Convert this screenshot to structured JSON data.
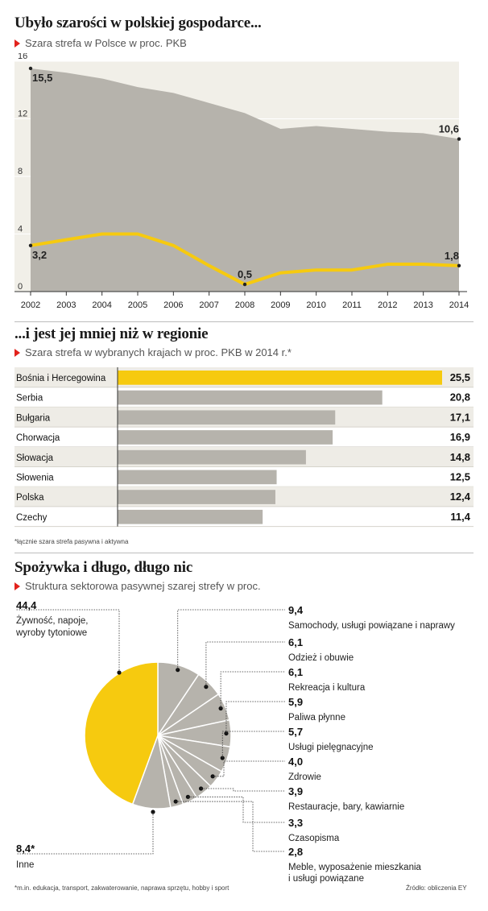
{
  "section1": {
    "title": "Ubyło szarości w polskiej gospodarce...",
    "subtitle": "Szara strefa w Polsce w proc. PKB"
  },
  "section2": {
    "title": "...i jest jej mniej niż w regionie",
    "subtitle": "Szara strefa w wybranych krajach w proc. PKB w 2014 r.*",
    "footnote": "*łącznie szara strefa pasywna i aktywna"
  },
  "section3": {
    "title": "Spożywka i długo, długo nic",
    "subtitle": "Struktura sektorowa pasywnej szarej strefy w proc.",
    "footnote": "*m.in. edukacja, transport, zakwaterowanie, naprawa sprzętu, hobby i sport",
    "source": "Źródło: obliczenia EY"
  },
  "colors": {
    "yellow": "#f6ca0f",
    "gray": "#b6b3ac",
    "red": "#e2221c",
    "edge": "#ffffff"
  },
  "chart_data": [
    {
      "type": "area",
      "x": [
        "2002",
        "2003",
        "2004",
        "2005",
        "2006",
        "2007",
        "2008",
        "2009",
        "2010",
        "2011",
        "2012",
        "2013",
        "2014"
      ],
      "ylim": [
        0,
        16
      ],
      "yticks": [
        "16",
        "12",
        "8",
        "4",
        "0"
      ],
      "series": [
        {
          "values": [
            15.5,
            15.2,
            14.8,
            14.2,
            13.8,
            13.1,
            12.4,
            11.3,
            11.5,
            11.3,
            11.1,
            11.0,
            10.6
          ]
        },
        {
          "values": [
            3.2,
            3.6,
            4.0,
            4.0,
            3.2,
            1.8,
            0.5,
            1.3,
            1.5,
            1.5,
            1.9,
            1.9,
            1.8
          ]
        }
      ],
      "labels": [
        {
          "series": 0,
          "index": 0,
          "text": "15,5"
        },
        {
          "series": 0,
          "index": 12,
          "text": "10,6"
        },
        {
          "series": 1,
          "index": 0,
          "text": "3,2"
        },
        {
          "series": 1,
          "index": 6,
          "text": "0,5"
        },
        {
          "series": 1,
          "index": 12,
          "text": "1,8"
        }
      ]
    },
    {
      "type": "bar",
      "categories": [
        "Bośnia i Hercegowina",
        "Serbia",
        "Bułgaria",
        "Chorwacja",
        "Słowacja",
        "Słowenia",
        "Polska",
        "Czechy"
      ],
      "values": [
        25.5,
        20.8,
        17.1,
        16.9,
        14.8,
        12.5,
        12.4,
        11.4
      ],
      "value_labels": [
        "25,5",
        "20,8",
        "17,1",
        "16,9",
        "14,8",
        "12,5",
        "12,4",
        "11,4"
      ],
      "max": 25.5
    },
    {
      "type": "pie",
      "slices": [
        {
          "value": 44.4,
          "value_label": "44,4",
          "label": "Żywność, napoje,\nwyroby tytoniowe"
        },
        {
          "value": 9.4,
          "value_label": "9,4",
          "label": "Samochody, usługi powiązane i naprawy"
        },
        {
          "value": 6.1,
          "value_label": "6,1",
          "label": "Odzież i obuwie"
        },
        {
          "value": 6.1,
          "value_label": "6,1",
          "label": "Rekreacja i kultura"
        },
        {
          "value": 5.9,
          "value_label": "5,9",
          "label": "Paliwa płynne"
        },
        {
          "value": 5.7,
          "value_label": "5,7",
          "label": "Usługi pielęgnacyjne"
        },
        {
          "value": 4.0,
          "value_label": "4,0",
          "label": "Zdrowie"
        },
        {
          "value": 3.9,
          "value_label": "3,9",
          "label": "Restauracje, bary, kawiarnie"
        },
        {
          "value": 3.3,
          "value_label": "3,3",
          "label": "Czasopisma"
        },
        {
          "value": 2.8,
          "value_label": "2,8",
          "label": "Meble, wyposażenie mieszkania\ni usługi powiązane"
        },
        {
          "value": 8.4,
          "value_label": "8,4*",
          "label": "Inne"
        }
      ]
    }
  ]
}
